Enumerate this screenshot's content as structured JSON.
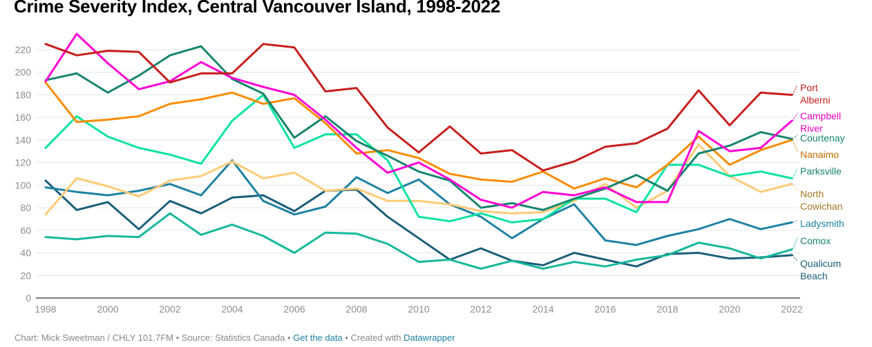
{
  "title": "Crime Severity Index, Central Vancouver Island, 1998-2022",
  "footer": {
    "credit": "Chart: Mick Sweetman / CHLY 101.7FM",
    "source": "Source: Statistics Canada",
    "get_data_link": "Get the data",
    "created_with": "Created with",
    "datawrapper_link": "Datawrapper",
    "separator": " • "
  },
  "chart_data": {
    "type": "line",
    "title": "Crime Severity Index, Central Vancouver Island, 1998-2022",
    "xlabel": "",
    "ylabel": "",
    "x": [
      1998,
      1999,
      2000,
      2001,
      2002,
      2003,
      2004,
      2005,
      2006,
      2007,
      2008,
      2009,
      2010,
      2011,
      2012,
      2013,
      2014,
      2015,
      2016,
      2017,
      2018,
      2019,
      2020,
      2021,
      2022
    ],
    "x_ticks": [
      "1998",
      "2000",
      "2002",
      "2004",
      "2006",
      "2008",
      "2010",
      "2012",
      "2014",
      "2016",
      "2018",
      "2020",
      "2022"
    ],
    "y_ticks": [
      "0",
      "20",
      "40",
      "60",
      "80",
      "100",
      "120",
      "140",
      "160",
      "180",
      "200",
      "220"
    ],
    "ylim": [
      0,
      230
    ],
    "grid": true,
    "legend": "direct-labels-right",
    "series": [
      {
        "name": "Port Alberni",
        "label_lines": [
          "Port",
          "Alberni"
        ],
        "color": "#c71e1d",
        "label_color": "#c71e1d",
        "values": [
          225,
          215,
          219,
          218,
          191,
          199,
          199,
          225,
          222,
          183,
          186,
          151,
          129,
          152,
          128,
          131,
          113,
          121,
          134,
          137,
          150,
          184,
          153,
          182,
          180
        ]
      },
      {
        "name": "Campbell River",
        "label_lines": [
          "Campbell",
          "River"
        ],
        "color": "#ff00d4",
        "label_color": "#e600c0",
        "values": [
          192,
          234,
          208,
          185,
          192,
          209,
          195,
          187,
          180,
          158,
          133,
          111,
          120,
          105,
          87,
          80,
          94,
          91,
          98,
          85,
          85,
          148,
          130,
          133,
          157
        ]
      },
      {
        "name": "Courtenay",
        "label_lines": [
          "Courtenay"
        ],
        "color": "#15846e",
        "label_color": "#15846e",
        "values": [
          193,
          199,
          182,
          197,
          215,
          223,
          194,
          181,
          142,
          161,
          139,
          126,
          112,
          104,
          80,
          84,
          78,
          88,
          97,
          109,
          95,
          128,
          135,
          147,
          141
        ]
      },
      {
        "name": "Nanaimo",
        "label_lines": [
          "Nanaimo"
        ],
        "color": "#fa8c00",
        "label_color": "#c46a00",
        "values": [
          191,
          156,
          158,
          161,
          172,
          176,
          182,
          172,
          177,
          155,
          128,
          131,
          124,
          110,
          105,
          103,
          112,
          97,
          106,
          98,
          118,
          143,
          118,
          131,
          140
        ]
      },
      {
        "name": "Parksville",
        "label_lines": [
          "Parksville"
        ],
        "color": "#09e3a0",
        "label_color": "#15846e",
        "values": [
          133,
          161,
          143,
          133,
          127,
          119,
          157,
          180,
          133,
          145,
          145,
          122,
          72,
          68,
          75,
          67,
          70,
          88,
          88,
          76,
          118,
          118,
          108,
          112,
          106
        ]
      },
      {
        "name": "North Cowichan",
        "label_lines": [
          "North",
          "Cowichan"
        ],
        "color": "#ffca76",
        "label_color": "#a47620",
        "values": [
          74,
          106,
          99,
          90,
          104,
          108,
          121,
          106,
          111,
          95,
          97,
          86,
          86,
          83,
          77,
          75,
          76,
          86,
          101,
          80,
          95,
          136,
          108,
          94,
          101
        ]
      },
      {
        "name": "Ladysmith",
        "label_lines": [
          "Ladysmith"
        ],
        "color": "#1d81a2",
        "label_color": "#1d81a2",
        "values": [
          98,
          94,
          91,
          95,
          101,
          91,
          122,
          86,
          74,
          81,
          107,
          93,
          105,
          83,
          72,
          53,
          70,
          83,
          51,
          47,
          55,
          61,
          70,
          61,
          67
        ]
      },
      {
        "name": "Comox",
        "label_lines": [
          "Comox"
        ],
        "color": "#15b89a",
        "label_color": "#15846e",
        "values": [
          54,
          52,
          55,
          54,
          75,
          56,
          65,
          55,
          40,
          58,
          57,
          48,
          32,
          34,
          26,
          33,
          26,
          32,
          28,
          34,
          38,
          49,
          44,
          35,
          43
        ]
      },
      {
        "name": "Qualicum Beach",
        "label_lines": [
          "Qualicum",
          "Beach"
        ],
        "color": "#1a5e7a",
        "label_color": "#1a5e7a",
        "values": [
          104,
          78,
          85,
          61,
          86,
          75,
          89,
          91,
          77,
          95,
          96,
          72,
          53,
          34,
          44,
          33,
          29,
          40,
          34,
          28,
          39,
          40,
          35,
          36,
          38
        ]
      }
    ]
  }
}
